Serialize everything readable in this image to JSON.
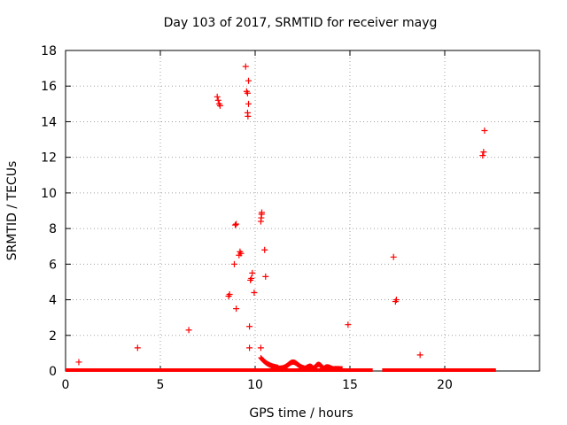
{
  "chart_data": {
    "type": "scatter",
    "title": "Day 103 of 2017, SRMTID for receiver mayg",
    "xlabel": "GPS time / hours",
    "ylabel": "SRMTID / TECUs",
    "xlim": [
      0,
      25
    ],
    "ylim": [
      0,
      18
    ],
    "xticks": [
      0,
      5,
      10,
      15,
      20
    ],
    "yticks": [
      0,
      2,
      4,
      6,
      8,
      10,
      12,
      14,
      16,
      18
    ],
    "grid": true,
    "marker": "+",
    "marker_color": "#ff0000",
    "series": [
      {
        "x": [
          0.7,
          3.8,
          6.5,
          8.0,
          8.05,
          8.1,
          8.15,
          8.6,
          8.65,
          8.9,
          8.95,
          9.0,
          9.0,
          9.15,
          9.2,
          9.25,
          9.5,
          9.55,
          9.6,
          9.6,
          9.62,
          9.65,
          9.65,
          9.7,
          9.7,
          9.75,
          9.8,
          9.85,
          9.95,
          10.3,
          10.32,
          10.34,
          10.35,
          10.5,
          10.55,
          10.3,
          14.9,
          17.3,
          17.4,
          17.45,
          18.7,
          22.0,
          22.05,
          22.1
        ],
        "y": [
          0.5,
          1.3,
          2.3,
          15.4,
          15.2,
          15.0,
          14.9,
          4.2,
          4.3,
          6.0,
          8.2,
          8.25,
          3.5,
          6.5,
          6.7,
          6.6,
          17.1,
          15.7,
          15.6,
          14.5,
          14.3,
          15.0,
          16.3,
          2.5,
          1.3,
          5.1,
          5.2,
          5.5,
          4.4,
          8.4,
          8.6,
          8.8,
          8.9,
          6.8,
          5.3,
          1.3,
          2.6,
          6.4,
          3.9,
          4.0,
          0.9,
          12.1,
          12.3,
          13.5
        ]
      }
    ]
  }
}
